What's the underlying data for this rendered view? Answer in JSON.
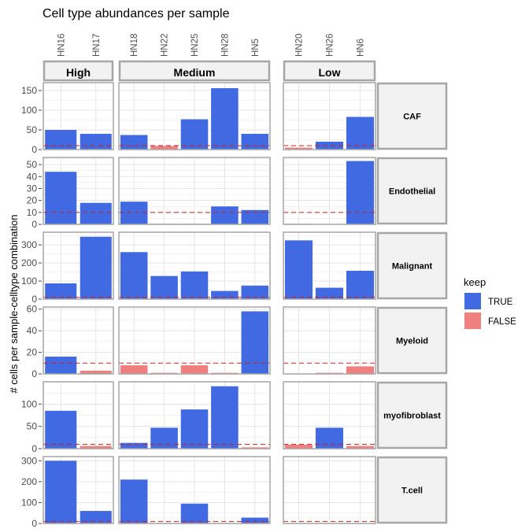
{
  "chart_data": {
    "type": "bar",
    "title": "Cell type abundances per sample",
    "xlabel": "",
    "ylabel": "# cells per sample-celltype combination",
    "threshold": 10,
    "groups": [
      {
        "name": "High",
        "samples": [
          "HN16",
          "HN17"
        ]
      },
      {
        "name": "Medium",
        "samples": [
          "HN18",
          "HN22",
          "HN25",
          "HN28",
          "HN5"
        ]
      },
      {
        "name": "Low",
        "samples": [
          "HN20",
          "HN26",
          "HN6"
        ]
      }
    ],
    "legend": {
      "title": "keep",
      "entries": [
        {
          "label": "TRUE",
          "color": "#4169E1"
        },
        {
          "label": "FALSE",
          "color": "#F08080"
        }
      ],
      "placement": "right"
    },
    "celltypes": [
      {
        "name": "CAF",
        "ylim": [
          0,
          170
        ],
        "ticks": [
          "0",
          "50",
          "100",
          "150"
        ],
        "values": {
          "HN16": 50,
          "HN17": 40,
          "HN18": 37,
          "HN22": 9,
          "HN25": 77,
          "HN28": 156,
          "HN5": 40,
          "HN20": 5,
          "HN26": 20,
          "HN6": 83
        }
      },
      {
        "name": "Endothelial",
        "ylim": [
          0,
          56
        ],
        "ticks": [
          "0",
          "10",
          "20",
          "30",
          "40",
          "50"
        ],
        "values": {
          "HN16": 44,
          "HN17": 18,
          "HN18": 19,
          "HN22": 0.5,
          "HN25": 0.5,
          "HN28": 15,
          "HN5": 12,
          "HN20": 0.5,
          "HN26": 0,
          "HN6": 53
        }
      },
      {
        "name": "Malignant",
        "ylim": [
          0,
          370
        ],
        "ticks": [
          "0",
          "100",
          "200",
          "300"
        ],
        "values": {
          "HN16": 87,
          "HN17": 345,
          "HN18": 260,
          "HN22": 128,
          "HN25": 153,
          "HN28": 45,
          "HN5": 75,
          "HN20": 325,
          "HN26": 63,
          "HN6": 157
        }
      },
      {
        "name": "Myeloid",
        "ylim": [
          0,
          62
        ],
        "ticks": [
          "0",
          "20",
          "40",
          "60"
        ],
        "values": {
          "HN16": 16,
          "HN17": 3,
          "HN18": 8,
          "HN22": 1,
          "HN25": 8,
          "HN28": 1,
          "HN5": 58,
          "HN20": 0,
          "HN26": 1,
          "HN6": 7
        }
      },
      {
        "name": "myofibroblast",
        "ylim": [
          0,
          150
        ],
        "ticks": [
          "0",
          "50",
          "100"
        ],
        "values": {
          "HN16": 85,
          "HN17": 6,
          "HN18": 13,
          "HN22": 47,
          "HN25": 88,
          "HN28": 140,
          "HN5": 3,
          "HN20": 9,
          "HN26": 47,
          "HN6": 6
        }
      },
      {
        "name": "T.cell",
        "ylim": [
          0,
          320
        ],
        "ticks": [
          "0",
          "100",
          "200",
          "300"
        ],
        "values": {
          "HN16": 300,
          "HN17": 60,
          "HN18": 210,
          "HN22": 0,
          "HN25": 95,
          "HN28": 0,
          "HN5": 28,
          "HN20": 0,
          "HN26": 0,
          "HN6": 0
        }
      }
    ]
  }
}
